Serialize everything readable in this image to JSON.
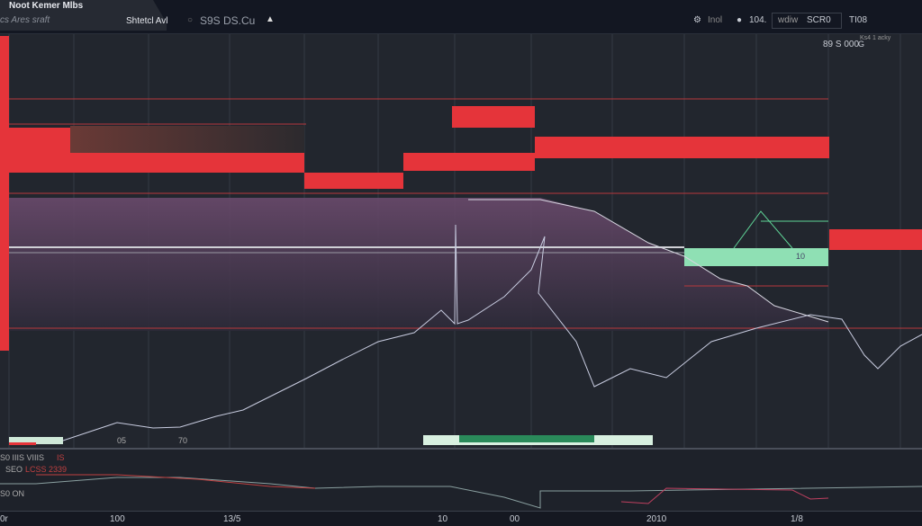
{
  "header": {
    "title": "Noot Kemer Mlbs",
    "subtitle": "cs Ares sraft",
    "tab_label": "Shtetcl Avl",
    "symbol": "S9S DS.Cu",
    "right_items": [
      "Inol",
      "104.",
      "wdiw",
      "SCR0",
      "TI08"
    ]
  },
  "chart": {
    "price_label": "89 S 000",
    "price_label_tag": "G",
    "corner_text": "Ks4 1 acky",
    "labels": {
      "a": "05",
      "b": "70",
      "c": "10"
    }
  },
  "indicator": {
    "line1": "S0 IIIS VIIIS",
    "line1_red": "IS",
    "line2": "SEO",
    "line2_red": "LCSS 2339",
    "line3": "S0 ON"
  },
  "x_axis": [
    "0r",
    "100",
    "13/5",
    "10",
    "00",
    "2010",
    "1/8"
  ],
  "colors": {
    "bg": "#22262e",
    "red": "#e5343a",
    "purple": "#5a3f5c",
    "green": "#5fd497"
  }
}
